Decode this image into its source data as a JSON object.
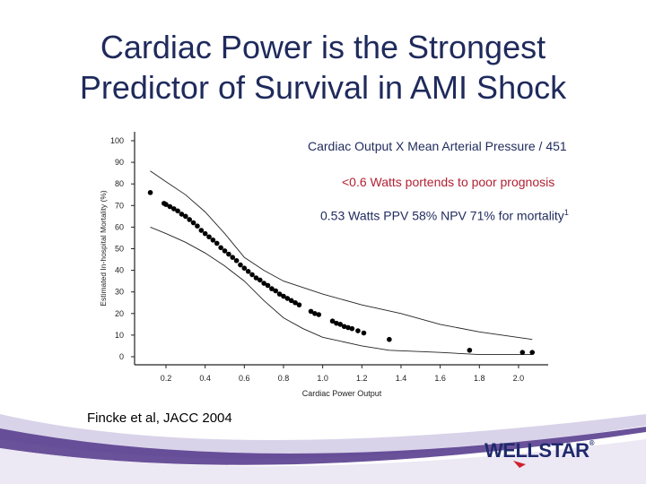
{
  "slide": {
    "title_line1": "Cardiac Power is the Strongest",
    "title_line2": "Predictor of Survival in AMI Shock",
    "note1": "Cardiac Output X Mean Arterial Pressure / 451",
    "note2": "<0.6 Watts portends to poor prognosis",
    "note3": "0.53 Watts PPV 58% NPV 71% for mortality",
    "note3_sup": "1",
    "citation": "Fincke et al, JACC 2004",
    "logo_text": "WELLSTAR",
    "logo_mark": "®",
    "colors": {
      "title": "#1f2a5c",
      "note_red": "#b22234",
      "logo": "#1f2a6c",
      "swoosh": "#5a3f8f"
    }
  },
  "chart_data": {
    "type": "scatter",
    "xlabel": "Cardiac Power Output",
    "ylabel": "Estimated In-hospital Mortality (%)",
    "xlim": [
      0.05,
      2.25
    ],
    "ylim": [
      0,
      100
    ],
    "xticks": [
      "0.2",
      "0.4",
      "0.6",
      "0.8",
      "1.0",
      "1.2",
      "1.4",
      "1.6",
      "1.8",
      "2.0"
    ],
    "yticks": [
      "0",
      "10",
      "20",
      "30",
      "40",
      "50",
      "60",
      "70",
      "80",
      "90",
      "100"
    ],
    "grid": false,
    "points": [
      [
        0.12,
        76
      ],
      [
        0.19,
        71
      ],
      [
        0.2,
        70.5
      ],
      [
        0.22,
        69.5
      ],
      [
        0.24,
        68.5
      ],
      [
        0.26,
        67.5
      ],
      [
        0.28,
        66
      ],
      [
        0.3,
        65
      ],
      [
        0.32,
        63.5
      ],
      [
        0.34,
        62
      ],
      [
        0.36,
        60.5
      ],
      [
        0.38,
        58.5
      ],
      [
        0.4,
        57
      ],
      [
        0.42,
        55.5
      ],
      [
        0.44,
        54
      ],
      [
        0.46,
        52.5
      ],
      [
        0.48,
        50.5
      ],
      [
        0.5,
        49
      ],
      [
        0.52,
        47.5
      ],
      [
        0.54,
        46
      ],
      [
        0.56,
        44.5
      ],
      [
        0.58,
        42.5
      ],
      [
        0.6,
        41
      ],
      [
        0.62,
        39.5
      ],
      [
        0.64,
        38
      ],
      [
        0.66,
        36.5
      ],
      [
        0.68,
        35.5
      ],
      [
        0.7,
        34
      ],
      [
        0.72,
        33
      ],
      [
        0.74,
        31.5
      ],
      [
        0.76,
        30.5
      ],
      [
        0.78,
        29
      ],
      [
        0.8,
        28
      ],
      [
        0.82,
        27
      ],
      [
        0.84,
        26
      ],
      [
        0.86,
        25
      ],
      [
        0.88,
        24
      ],
      [
        0.94,
        21
      ],
      [
        0.96,
        20
      ],
      [
        0.98,
        19.5
      ],
      [
        1.05,
        16.5
      ],
      [
        1.07,
        15.5
      ],
      [
        1.09,
        15
      ],
      [
        1.11,
        14
      ],
      [
        1.13,
        13.5
      ],
      [
        1.15,
        13
      ],
      [
        1.18,
        12
      ],
      [
        1.21,
        11
      ],
      [
        1.34,
        8
      ],
      [
        1.75,
        3
      ],
      [
        2.02,
        2
      ],
      [
        2.07,
        2
      ]
    ],
    "upper_ci": [
      [
        0.12,
        86
      ],
      [
        0.2,
        81
      ],
      [
        0.3,
        75
      ],
      [
        0.4,
        67
      ],
      [
        0.5,
        57
      ],
      [
        0.6,
        46
      ],
      [
        0.7,
        40
      ],
      [
        0.8,
        35
      ],
      [
        1.0,
        29
      ],
      [
        1.2,
        24
      ],
      [
        1.4,
        20
      ],
      [
        1.6,
        15
      ],
      [
        1.8,
        11.5
      ],
      [
        2.07,
        8
      ]
    ],
    "lower_ci": [
      [
        0.12,
        60
      ],
      [
        0.2,
        57
      ],
      [
        0.3,
        53
      ],
      [
        0.4,
        48
      ],
      [
        0.5,
        42
      ],
      [
        0.6,
        35
      ],
      [
        0.7,
        26
      ],
      [
        0.8,
        18
      ],
      [
        0.9,
        13
      ],
      [
        1.0,
        9
      ],
      [
        1.2,
        5
      ],
      [
        1.34,
        3
      ],
      [
        1.6,
        2
      ],
      [
        1.8,
        1
      ],
      [
        2.07,
        1
      ]
    ]
  }
}
